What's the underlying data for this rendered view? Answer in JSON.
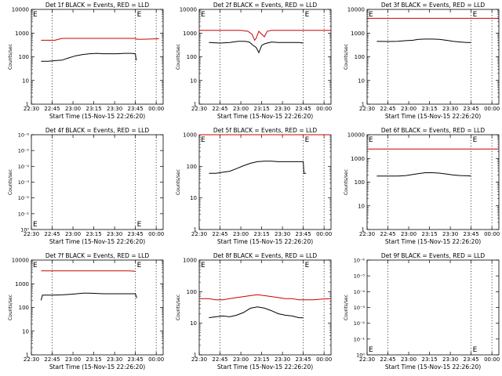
{
  "colors": {
    "events": "#000000",
    "lld": "#cc0000",
    "axis": "#000000"
  },
  "chart_data": [
    {
      "type": "line",
      "title": "Det 1f BLACK = Events, RED = LLD",
      "xlabel": "Start Time (15-Nov-15 22:26:20)",
      "ylabel": "Counts/sec",
      "x_ticks": [
        "22:30",
        "22:45",
        "23:00",
        "23:15",
        "23:30",
        "23:45",
        "00:00"
      ],
      "y_ticks": [
        "1",
        "10",
        "100",
        "1000",
        "10000"
      ],
      "yscale": "log",
      "ylim": [
        1,
        10000
      ],
      "xlim_min": [
        0,
        95
      ],
      "x_dotted": [
        15,
        75,
        90
      ],
      "markers": [
        {
          "label": "E",
          "x": 0
        },
        {
          "label": "E",
          "x": 75
        }
      ],
      "series": [
        {
          "name": "BLACK",
          "color": "#000000",
          "x": [
            7,
            12,
            18,
            22,
            27,
            32,
            37,
            42,
            47,
            52,
            57,
            62,
            67,
            72,
            75,
            75.5,
            76
          ],
          "y": [
            65,
            65,
            70,
            72,
            90,
            110,
            125,
            135,
            140,
            135,
            135,
            135,
            140,
            140,
            135,
            75,
            75
          ]
        },
        {
          "name": "RED",
          "color": "#cc0000",
          "x": [
            7,
            12,
            17,
            22,
            27,
            32,
            37,
            42,
            47,
            52,
            57,
            62,
            67,
            72,
            75,
            76,
            80,
            85,
            92
          ],
          "y": [
            500,
            500,
            500,
            600,
            600,
            600,
            600,
            600,
            600,
            600,
            600,
            600,
            600,
            600,
            600,
            550,
            550,
            560,
            580
          ]
        }
      ]
    },
    {
      "type": "line",
      "title": "Det 2f BLACK = Events, RED = LLD",
      "xlabel": "Start Time (15-Nov-15 22:26:20)",
      "ylabel": "Counts/sec",
      "x_ticks": [
        "22:30",
        "22:45",
        "23:00",
        "23:15",
        "23:30",
        "23:45",
        "00:00"
      ],
      "y_ticks": [
        "1",
        "10",
        "100",
        "1000",
        "10000"
      ],
      "yscale": "log",
      "ylim": [
        1,
        10000
      ],
      "xlim_min": [
        0,
        95
      ],
      "x_dotted": [
        15,
        75,
        90
      ],
      "markers": [
        {
          "label": "E",
          "x": 0
        },
        {
          "label": "E",
          "x": 75
        }
      ],
      "series": [
        {
          "name": "BLACK",
          "color": "#000000",
          "x": [
            7,
            15,
            22,
            28,
            33,
            36,
            39,
            41,
            43,
            45,
            47,
            49,
            52,
            57,
            62,
            67,
            72,
            75
          ],
          "y": [
            400,
            380,
            400,
            450,
            450,
            420,
            300,
            250,
            150,
            300,
            350,
            380,
            420,
            400,
            400,
            400,
            400,
            380
          ]
        },
        {
          "name": "RED",
          "color": "#cc0000",
          "x": [
            0,
            10,
            20,
            30,
            35,
            38,
            40,
            41,
            43,
            45,
            47,
            49,
            52,
            55,
            65,
            75,
            85,
            95
          ],
          "y": [
            1300,
            1300,
            1300,
            1300,
            1200,
            900,
            500,
            600,
            1200,
            900,
            700,
            1200,
            1300,
            1300,
            1300,
            1300,
            1300,
            1300
          ]
        }
      ]
    },
    {
      "type": "line",
      "title": "Det 3f BLACK = Events, RED = LLD",
      "xlabel": "Start Time (15-Nov-15 22:26:20)",
      "ylabel": "Counts/sec",
      "x_ticks": [
        "22:30",
        "22:45",
        "23:00",
        "23:15",
        "23:30",
        "23:45",
        "00:00"
      ],
      "y_ticks": [
        "1",
        "10",
        "100",
        "1000",
        "10000"
      ],
      "yscale": "log",
      "ylim": [
        1,
        10000
      ],
      "xlim_min": [
        0,
        95
      ],
      "x_dotted": [
        15,
        75,
        90
      ],
      "markers": [
        {
          "label": "E",
          "x": 0
        },
        {
          "label": "E",
          "x": 75
        }
      ],
      "series": [
        {
          "name": "BLACK",
          "color": "#000000",
          "x": [
            7,
            15,
            22,
            28,
            33,
            37,
            42,
            47,
            52,
            57,
            62,
            67,
            72,
            75
          ],
          "y": [
            450,
            440,
            450,
            480,
            500,
            540,
            560,
            560,
            540,
            500,
            450,
            420,
            400,
            400
          ]
        },
        {
          "name": "RED",
          "color": "#cc0000",
          "x": [
            0,
            10,
            20,
            30,
            40,
            50,
            60,
            70,
            80,
            90,
            95
          ],
          "y": [
            4200,
            4200,
            4200,
            4200,
            4200,
            4200,
            4200,
            4200,
            4200,
            4200,
            4200
          ]
        }
      ]
    },
    {
      "type": "line",
      "title": "Det 4f BLACK = Events, RED = LLD",
      "xlabel": "Start Time (15-Nov-15 22:26:20)",
      "ylabel": "Counts/sec",
      "x_ticks": [
        "22:30",
        "22:45",
        "23:00",
        "23:15",
        "23:30",
        "23:45",
        "00:00"
      ],
      "y_ticks": [
        "10⁰",
        "10⁻¹",
        "10⁻²",
        "10⁻³",
        "10⁻⁴",
        "10⁻⁵",
        "10⁻⁶"
      ],
      "yscale": "empty",
      "ylim": [
        0,
        6
      ],
      "xlim_min": [
        0,
        95
      ],
      "x_dotted": [
        15,
        75,
        90
      ],
      "markers": [
        {
          "label": "E",
          "x": 0
        },
        {
          "label": "E",
          "x": 75
        }
      ],
      "series": []
    },
    {
      "type": "line",
      "title": "Det 5f BLACK = Events, RED = LLD",
      "xlabel": "Start Time (15-Nov-15 22:26:20)",
      "ylabel": "Counts/sec",
      "x_ticks": [
        "22:30",
        "22:45",
        "23:00",
        "23:15",
        "23:30",
        "23:45",
        "00:00"
      ],
      "y_ticks": [
        "1",
        "10",
        "100",
        "1000"
      ],
      "yscale": "log",
      "ylim": [
        1,
        1000
      ],
      "xlim_min": [
        0,
        95
      ],
      "x_dotted": [
        15,
        75,
        90
      ],
      "markers": [
        {
          "label": "E",
          "x": 0
        },
        {
          "label": "E",
          "x": 75
        }
      ],
      "series": [
        {
          "name": "BLACK",
          "color": "#000000",
          "x": [
            7,
            12,
            17,
            22,
            27,
            32,
            37,
            42,
            47,
            52,
            57,
            62,
            67,
            72,
            75,
            75.5,
            77
          ],
          "y": [
            60,
            60,
            65,
            70,
            85,
            105,
            125,
            140,
            145,
            145,
            140,
            140,
            140,
            140,
            140,
            60,
            60
          ]
        },
        {
          "name": "RED",
          "color": "#cc0000",
          "x": [
            0,
            20,
            40,
            60,
            80,
            95
          ],
          "y": [
            1000,
            1000,
            1000,
            1000,
            1000,
            1000
          ]
        }
      ]
    },
    {
      "type": "line",
      "title": "Det 6f BLACK = Events, RED = LLD",
      "xlabel": "Start Time (15-Nov-15 22:26:20)",
      "ylabel": "Counts/sec",
      "x_ticks": [
        "22:30",
        "22:45",
        "23:00",
        "23:15",
        "23:30",
        "23:45",
        "00:00"
      ],
      "y_ticks": [
        "1",
        "10",
        "100",
        "1000",
        "10000"
      ],
      "yscale": "log",
      "ylim": [
        1,
        10000
      ],
      "xlim_min": [
        0,
        95
      ],
      "x_dotted": [
        15,
        75,
        90
      ],
      "markers": [
        {
          "label": "E",
          "x": 0
        },
        {
          "label": "E",
          "x": 75
        }
      ],
      "series": [
        {
          "name": "BLACK",
          "color": "#000000",
          "x": [
            7,
            15,
            22,
            28,
            33,
            37,
            42,
            47,
            52,
            57,
            62,
            67,
            72,
            75
          ],
          "y": [
            180,
            180,
            180,
            190,
            210,
            230,
            250,
            250,
            240,
            220,
            200,
            190,
            185,
            180
          ]
        },
        {
          "name": "RED",
          "color": "#cc0000",
          "x": [
            0,
            10,
            20,
            30,
            40,
            50,
            60,
            70,
            80,
            90,
            95
          ],
          "y": [
            2500,
            2500,
            2500,
            2500,
            2500,
            2500,
            2500,
            2500,
            2500,
            2500,
            2500
          ]
        }
      ]
    },
    {
      "type": "line",
      "title": "Det 7f BLACK = Events, RED = LLD",
      "xlabel": "Start Time (15-Nov-15 22:26:20)",
      "ylabel": "Counts/sec",
      "x_ticks": [
        "22:30",
        "22:45",
        "23:00",
        "23:15",
        "23:30",
        "23:45",
        "00:00"
      ],
      "y_ticks": [
        "1",
        "10",
        "100",
        "1000",
        "10000"
      ],
      "yscale": "log",
      "ylim": [
        1,
        10000
      ],
      "xlim_min": [
        0,
        95
      ],
      "x_dotted": [
        15,
        75,
        90
      ],
      "markers": [
        {
          "label": "E",
          "x": 0
        },
        {
          "label": "E",
          "x": 75
        }
      ],
      "series": [
        {
          "name": "BLACK",
          "color": "#000000",
          "x": [
            7,
            8,
            15,
            22,
            28,
            33,
            37,
            42,
            47,
            52,
            57,
            62,
            67,
            72,
            75,
            76
          ],
          "y": [
            200,
            330,
            330,
            340,
            360,
            380,
            400,
            400,
            390,
            380,
            380,
            380,
            380,
            380,
            380,
            250
          ]
        },
        {
          "name": "RED",
          "color": "#cc0000",
          "x": [
            7,
            20,
            30,
            40,
            50,
            60,
            70,
            75
          ],
          "y": [
            3500,
            3500,
            3500,
            3500,
            3500,
            3500,
            3500,
            3400
          ]
        }
      ]
    },
    {
      "type": "line",
      "title": "Det 8f BLACK = Events, RED = LLD",
      "xlabel": "Start Time (15-Nov-15 22:26:20)",
      "ylabel": "Counts/sec",
      "x_ticks": [
        "22:30",
        "22:45",
        "23:00",
        "23:15",
        "23:30",
        "23:45",
        "00:00"
      ],
      "y_ticks": [
        "1",
        "10",
        "100",
        "1000"
      ],
      "yscale": "log",
      "ylim": [
        1,
        1000
      ],
      "xlim_min": [
        0,
        95
      ],
      "x_dotted": [
        15,
        75,
        90
      ],
      "markers": [
        {
          "label": "E",
          "x": 0
        },
        {
          "label": "E",
          "x": 75
        }
      ],
      "series": [
        {
          "name": "BLACK",
          "color": "#000000",
          "x": [
            7,
            12,
            17,
            22,
            27,
            32,
            37,
            42,
            47,
            52,
            57,
            62,
            67,
            72,
            75
          ],
          "y": [
            15,
            16,
            17,
            16,
            18,
            22,
            30,
            33,
            30,
            25,
            20,
            18,
            17,
            15,
            15
          ]
        },
        {
          "name": "RED",
          "color": "#cc0000",
          "x": [
            0,
            7,
            12,
            17,
            22,
            27,
            32,
            37,
            42,
            47,
            52,
            57,
            62,
            67,
            72,
            77,
            82,
            88,
            95
          ],
          "y": [
            60,
            60,
            55,
            55,
            60,
            65,
            70,
            75,
            80,
            75,
            70,
            65,
            60,
            60,
            55,
            55,
            55,
            58,
            60
          ]
        }
      ]
    },
    {
      "type": "line",
      "title": "Det 9f BLACK = Events, RED = LLD",
      "xlabel": "Start Time (15-Nov-15 22:26:20)",
      "ylabel": "Counts/sec",
      "x_ticks": [
        "22:30",
        "22:45",
        "23:00",
        "23:15",
        "23:30",
        "23:45",
        "00:00"
      ],
      "y_ticks": [
        "10⁰",
        "10⁻¹",
        "10⁻²",
        "10⁻³",
        "10⁻⁴",
        "10⁻⁵",
        "10⁻⁶"
      ],
      "yscale": "empty",
      "ylim": [
        0,
        6
      ],
      "xlim_min": [
        0,
        95
      ],
      "x_dotted": [
        15,
        75,
        90
      ],
      "markers": [
        {
          "label": "E",
          "x": 0
        },
        {
          "label": "E",
          "x": 75
        }
      ],
      "series": []
    }
  ]
}
